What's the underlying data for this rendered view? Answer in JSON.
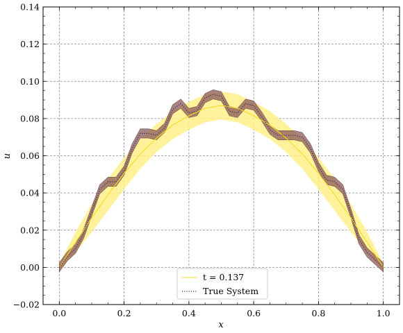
{
  "chart_data": {
    "type": "line",
    "xlabel": "x",
    "ylabel": "u",
    "xlim": [
      -0.05,
      1.05
    ],
    "ylim": [
      -0.02,
      0.14
    ],
    "x_ticks": [
      0.0,
      0.2,
      0.4,
      0.6,
      0.8,
      1.0
    ],
    "x_tick_labels": [
      "0.0",
      "0.2",
      "0.4",
      "0.6",
      "0.8",
      "1.0"
    ],
    "y_ticks": [
      -0.02,
      0.0,
      0.02,
      0.04,
      0.06,
      0.08,
      0.1,
      0.12,
      0.14
    ],
    "y_tick_labels": [
      "−0.02",
      "0.00",
      "0.02",
      "0.04",
      "0.06",
      "0.08",
      "0.10",
      "0.12",
      "0.14"
    ],
    "grid": true,
    "legend_position": "bottom-center",
    "series": [
      {
        "name": "t = 0.137",
        "style": "solid",
        "color": "#f5dc1e",
        "band_color": "#fff08a",
        "x": [
          0.0,
          0.05,
          0.1,
          0.15,
          0.2,
          0.25,
          0.3,
          0.35,
          0.4,
          0.45,
          0.5,
          0.55,
          0.6,
          0.65,
          0.7,
          0.75,
          0.8,
          0.85,
          0.9,
          0.95,
          1.0
        ],
        "values": [
          0.0,
          0.0135,
          0.0265,
          0.039,
          0.0505,
          0.061,
          0.0695,
          0.0765,
          0.0815,
          0.0855,
          0.087,
          0.0855,
          0.0815,
          0.0765,
          0.0695,
          0.061,
          0.0505,
          0.039,
          0.0265,
          0.0135,
          0.0
        ],
        "band_halfwidth": [
          0.002,
          0.0055,
          0.0075,
          0.0085,
          0.0085,
          0.008,
          0.0075,
          0.0075,
          0.0075,
          0.0075,
          0.0075,
          0.0075,
          0.0075,
          0.0075,
          0.0075,
          0.008,
          0.0085,
          0.0085,
          0.0075,
          0.0055,
          0.002
        ]
      },
      {
        "name": "True System",
        "style": "dotted",
        "color": "#3b2a5e",
        "band_color": "#8b5a5a",
        "x": [
          0.0,
          0.025,
          0.05,
          0.075,
          0.1,
          0.125,
          0.15,
          0.175,
          0.2,
          0.225,
          0.25,
          0.275,
          0.3,
          0.325,
          0.35,
          0.375,
          0.4,
          0.425,
          0.45,
          0.475,
          0.5,
          0.525,
          0.55,
          0.575,
          0.6,
          0.625,
          0.65,
          0.675,
          0.7,
          0.725,
          0.75,
          0.775,
          0.8,
          0.825,
          0.85,
          0.875,
          0.9,
          0.925,
          0.95,
          0.975,
          1.0
        ],
        "values": [
          0.0,
          0.006,
          0.01,
          0.018,
          0.03,
          0.042,
          0.046,
          0.046,
          0.052,
          0.064,
          0.072,
          0.072,
          0.071,
          0.075,
          0.085,
          0.088,
          0.083,
          0.084,
          0.091,
          0.093,
          0.092,
          0.084,
          0.083,
          0.088,
          0.087,
          0.081,
          0.074,
          0.071,
          0.071,
          0.071,
          0.07,
          0.064,
          0.054,
          0.047,
          0.046,
          0.042,
          0.029,
          0.015,
          0.008,
          0.004,
          0.0
        ],
        "band_halfwidth": 0.0025
      }
    ]
  }
}
